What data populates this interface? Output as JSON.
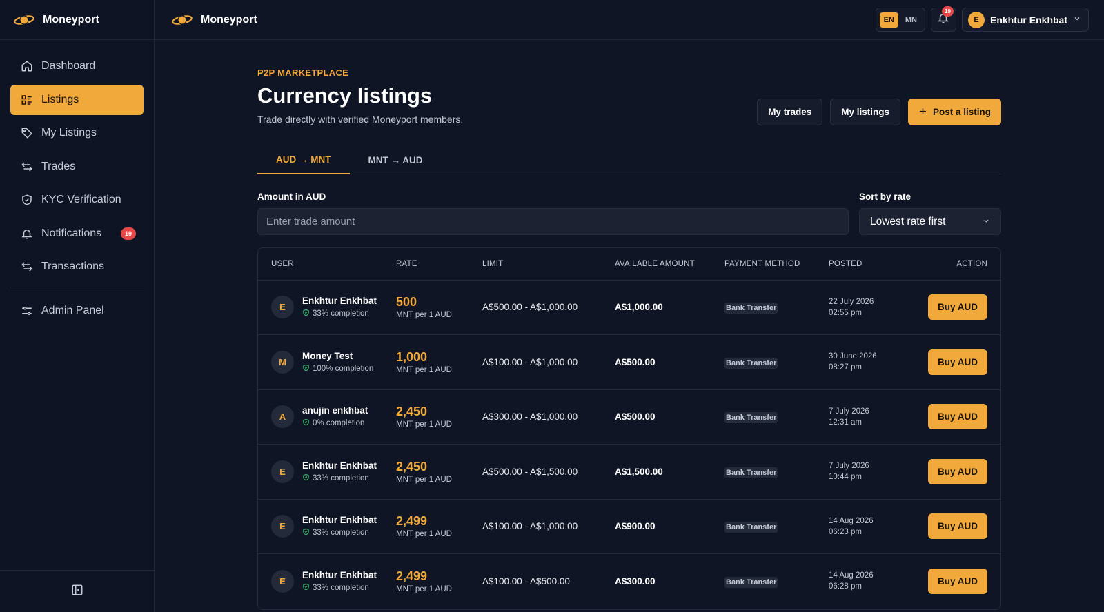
{
  "brand": {
    "name": "Moneyport"
  },
  "colors": {
    "accent": "#f2a93b",
    "background": "#0f1524",
    "badge": "#e54848"
  },
  "sidebar": {
    "items": [
      {
        "label": "Dashboard",
        "icon": "home-icon",
        "active": false
      },
      {
        "label": "Listings",
        "icon": "list-icon",
        "active": true
      },
      {
        "label": "My Listings",
        "icon": "tag-icon",
        "active": false
      },
      {
        "label": "Trades",
        "icon": "swap-icon",
        "active": false
      },
      {
        "label": "KYC Verification",
        "icon": "shield-icon",
        "active": false
      },
      {
        "label": "Notifications",
        "icon": "bell-icon",
        "active": false,
        "badge": "19"
      },
      {
        "label": "Transactions",
        "icon": "swap-icon",
        "active": false
      }
    ],
    "admin": {
      "label": "Admin Panel",
      "icon": "sliders-icon"
    },
    "collapse_icon": "sidebar-collapse-icon"
  },
  "topbar": {
    "lang": {
      "en": "EN",
      "mn": "MN",
      "selected": "EN"
    },
    "notifications_count": "19",
    "user": {
      "initial": "E",
      "name": "Enkhtur Enkhbat"
    }
  },
  "page": {
    "eyebrow": "P2P MARKETPLACE",
    "title": "Currency listings",
    "subtitle": "Trade directly with verified Moneyport members.",
    "actions": {
      "my_trades": "My trades",
      "my_listings": "My listings",
      "post": "Post a listing"
    },
    "tabs": [
      {
        "label": "AUD → MNT",
        "active": true
      },
      {
        "label": "MNT → AUD",
        "active": false
      }
    ],
    "amount": {
      "label": "Amount in AUD",
      "placeholder": "Enter trade amount"
    },
    "sort": {
      "label": "Sort by rate",
      "value": "Lowest rate first"
    }
  },
  "table": {
    "headers": [
      "USER",
      "RATE",
      "LIMIT",
      "AVAILABLE AMOUNT",
      "PAYMENT METHOD",
      "POSTED",
      "ACTION"
    ],
    "rows": [
      {
        "initial": "E",
        "name": "Enkhtur Enkhbat",
        "completion": "33% completion",
        "rate": "500",
        "rate_unit": "MNT per 1 AUD",
        "limit": "A$500.00 - A$1,000.00",
        "available": "A$1,000.00",
        "payment": "Bank Transfer",
        "date": "22 July 2026",
        "time": "02:55 pm",
        "action": "Buy AUD"
      },
      {
        "initial": "M",
        "name": "Money Test",
        "completion": "100% completion",
        "rate": "1,000",
        "rate_unit": "MNT per 1 AUD",
        "limit": "A$100.00 - A$1,000.00",
        "available": "A$500.00",
        "payment": "Bank Transfer",
        "date": "30 June 2026",
        "time": "08:27 pm",
        "action": "Buy AUD"
      },
      {
        "initial": "A",
        "name": "anujin enkhbat",
        "completion": "0% completion",
        "rate": "2,450",
        "rate_unit": "MNT per 1 AUD",
        "limit": "A$300.00 - A$1,000.00",
        "available": "A$500.00",
        "payment": "Bank Transfer",
        "date": "7 July 2026",
        "time": "12:31 am",
        "action": "Buy AUD"
      },
      {
        "initial": "E",
        "name": "Enkhtur Enkhbat",
        "completion": "33% completion",
        "rate": "2,450",
        "rate_unit": "MNT per 1 AUD",
        "limit": "A$500.00 - A$1,500.00",
        "available": "A$1,500.00",
        "payment": "Bank Transfer",
        "date": "7 July 2026",
        "time": "10:44 pm",
        "action": "Buy AUD"
      },
      {
        "initial": "E",
        "name": "Enkhtur Enkhbat",
        "completion": "33% completion",
        "rate": "2,499",
        "rate_unit": "MNT per 1 AUD",
        "limit": "A$100.00 - A$1,000.00",
        "available": "A$900.00",
        "payment": "Bank Transfer",
        "date": "14 Aug 2026",
        "time": "06:23 pm",
        "action": "Buy AUD"
      },
      {
        "initial": "E",
        "name": "Enkhtur Enkhbat",
        "completion": "33% completion",
        "rate": "2,499",
        "rate_unit": "MNT per 1 AUD",
        "limit": "A$100.00 - A$500.00",
        "available": "A$300.00",
        "payment": "Bank Transfer",
        "date": "14 Aug 2026",
        "time": "06:28 pm",
        "action": "Buy AUD"
      }
    ]
  }
}
